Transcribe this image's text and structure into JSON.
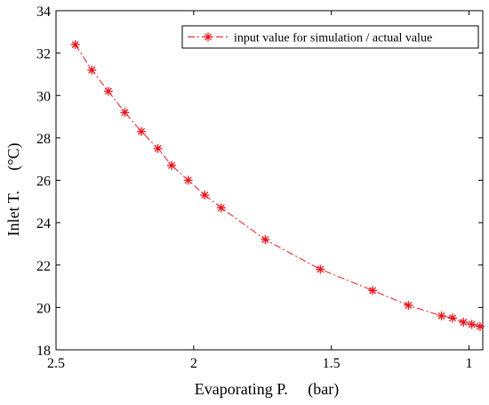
{
  "chart_data": {
    "type": "line",
    "xlabel": "Evaporating P.     (bar)",
    "ylabel": "Inlet T.     (°C)",
    "xlim": [
      2.5,
      0.95
    ],
    "ylim": [
      18,
      34
    ],
    "x_reversed": true,
    "xticks": [
      2.5,
      2,
      1.5,
      1
    ],
    "xtick_labels": [
      "2.5",
      "2",
      "1.5",
      "1"
    ],
    "yticks": [
      18,
      20,
      22,
      24,
      26,
      28,
      30,
      32,
      34
    ],
    "ytick_labels": [
      "18",
      "20",
      "22",
      "24",
      "26",
      "28",
      "30",
      "32",
      "34"
    ],
    "grid": false,
    "legend_position": "top-right",
    "line_color": "#e8141c",
    "marker": "asterisk",
    "line_style": "dash-dot",
    "series": [
      {
        "name": "input value for simulation / actual value",
        "x": [
          2.43,
          2.37,
          2.31,
          2.25,
          2.19,
          2.13,
          2.08,
          2.02,
          1.96,
          1.9,
          1.74,
          1.54,
          1.35,
          1.22,
          1.1,
          1.06,
          1.02,
          0.99,
          0.96
        ],
        "y": [
          32.4,
          31.2,
          30.2,
          29.2,
          28.3,
          27.5,
          26.7,
          26.0,
          25.3,
          24.7,
          23.2,
          21.8,
          20.8,
          20.1,
          19.6,
          19.5,
          19.3,
          19.2,
          19.1
        ]
      }
    ]
  }
}
